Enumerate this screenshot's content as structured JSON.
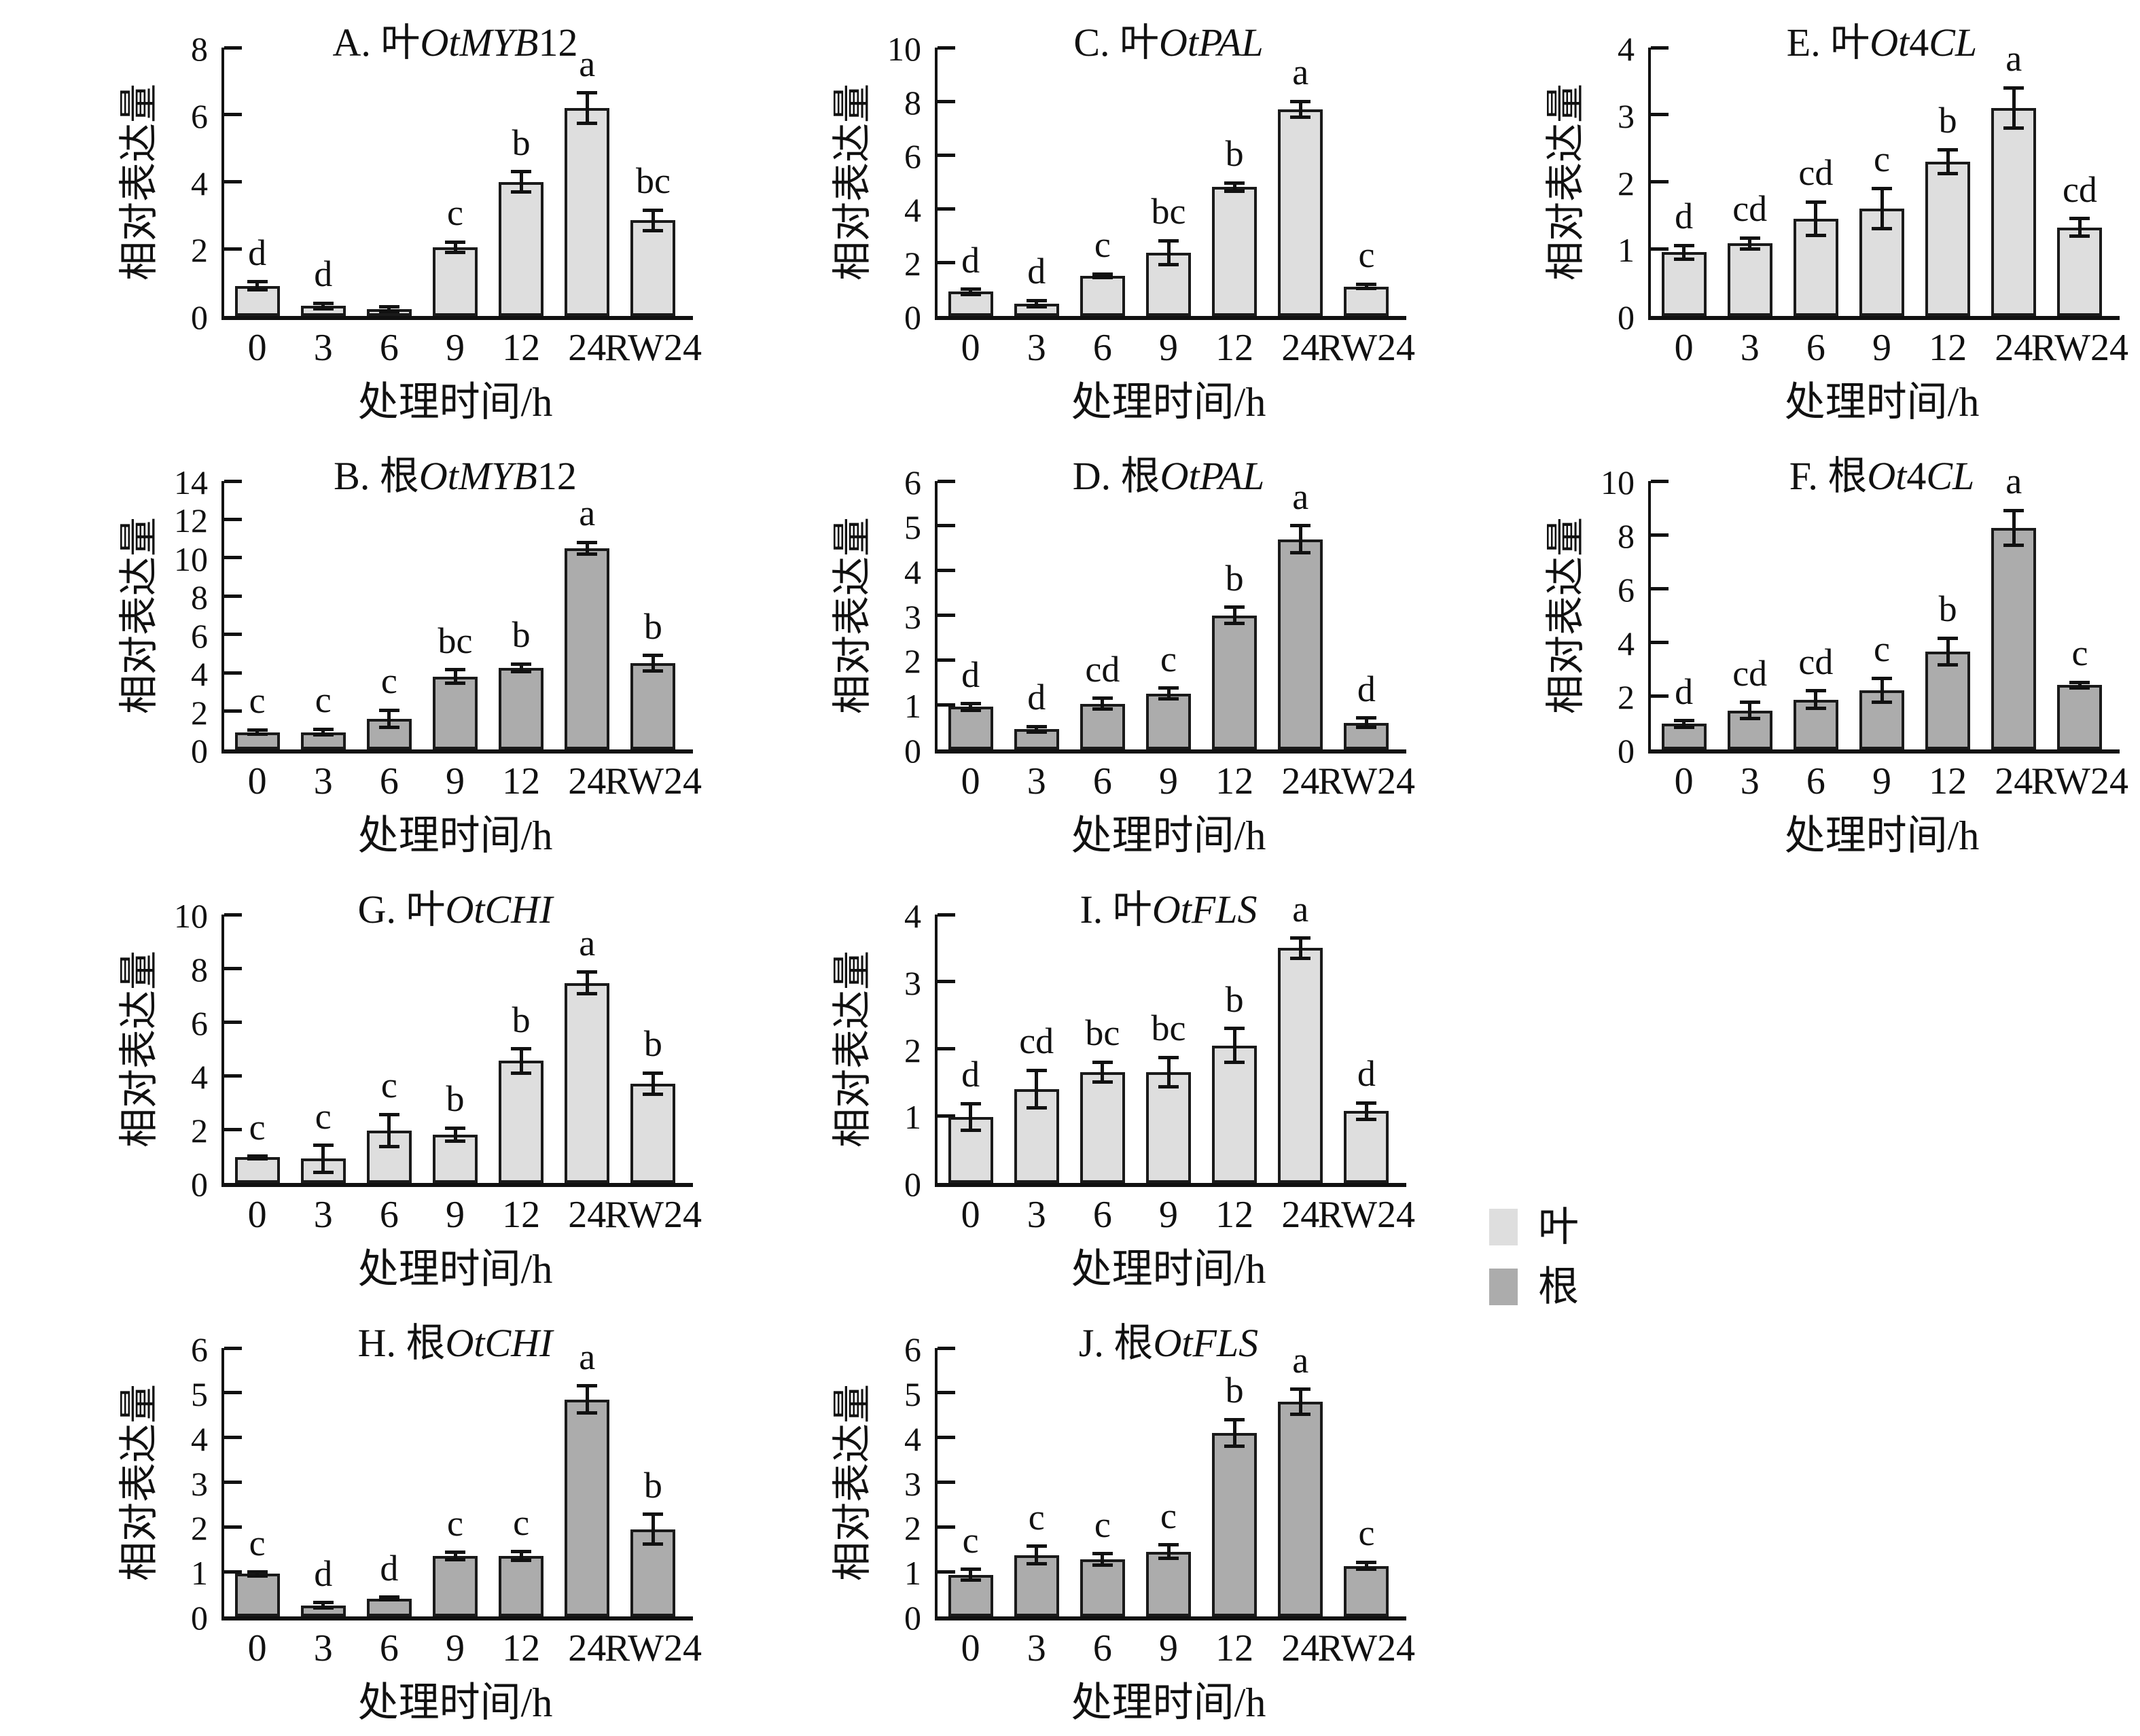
{
  "chart_data": {
    "type": "bar",
    "figure_kind": "qPCR relative expression bar panels",
    "categories": [
      "0",
      "3",
      "6",
      "9",
      "12",
      "24",
      "RW24"
    ],
    "xlabel": "处理时间/h",
    "ylabel": "相对表达量",
    "grid": false,
    "colors": {
      "leaf_fill": "#dedede",
      "root_fill": "#acacac",
      "bar_border": "#1a1a1a",
      "axis": "#111111",
      "text": "#111111",
      "background": "#ffffff"
    },
    "legend": {
      "position": "right-middle",
      "items": [
        {
          "label": "叶",
          "series": "leaf",
          "color": "#dedede"
        },
        {
          "label": "根",
          "series": "root",
          "color": "#acacac"
        }
      ]
    },
    "panels": [
      {
        "panel": "A",
        "title": "A. 叶OtMYB12",
        "title_segments": [
          {
            "t": "A. 叶",
            "i": false
          },
          {
            "t": "OtMYB",
            "i": true
          },
          {
            "t": "12",
            "i": false
          }
        ],
        "series": "leaf",
        "grid_row": 0,
        "grid_col": 0,
        "ylim": [
          0,
          8
        ],
        "ytick_step": 2,
        "values": [
          0.9,
          0.3,
          0.2,
          2.05,
          4.0,
          6.2,
          2.85
        ],
        "errors": [
          0.12,
          0.08,
          0.07,
          0.15,
          0.3,
          0.45,
          0.3
        ],
        "sig_letters": [
          "d",
          "d",
          "",
          "c",
          "b",
          "a",
          "bc"
        ]
      },
      {
        "panel": "C",
        "title": "C. 叶OtPAL",
        "title_segments": [
          {
            "t": "C. 叶",
            "i": false
          },
          {
            "t": "OtPAL",
            "i": true
          }
        ],
        "series": "leaf",
        "grid_row": 0,
        "grid_col": 1,
        "ylim": [
          0,
          10
        ],
        "ytick_step": 2,
        "values": [
          0.9,
          0.45,
          1.5,
          2.35,
          4.8,
          7.7,
          1.1
        ],
        "errors": [
          0.1,
          0.12,
          0.06,
          0.45,
          0.15,
          0.3,
          0.08
        ],
        "sig_letters": [
          "d",
          "d",
          "c",
          "bc",
          "b",
          "a",
          "c"
        ]
      },
      {
        "panel": "E",
        "title": "E. 叶Ot4CL",
        "title_segments": [
          {
            "t": "E. 叶",
            "i": false
          },
          {
            "t": "Ot",
            "i": true
          },
          {
            "t": "4",
            "i": false
          },
          {
            "t": "CL",
            "i": true
          }
        ],
        "series": "leaf",
        "grid_row": 0,
        "grid_col": 2,
        "ylim": [
          0,
          4
        ],
        "ytick_step": 1,
        "values": [
          0.95,
          1.08,
          1.45,
          1.6,
          2.3,
          3.1,
          1.32
        ],
        "errors": [
          0.1,
          0.08,
          0.25,
          0.3,
          0.18,
          0.3,
          0.13
        ],
        "sig_letters": [
          "d",
          "cd",
          "cd",
          "c",
          "b",
          "a",
          "cd"
        ]
      },
      {
        "panel": "B",
        "title": "B. 根OtMYB12",
        "title_segments": [
          {
            "t": "B. 根",
            "i": false
          },
          {
            "t": "OtMYB",
            "i": true
          },
          {
            "t": "12",
            "i": false
          }
        ],
        "series": "root",
        "grid_row": 1,
        "grid_col": 0,
        "ylim": [
          0,
          14
        ],
        "ytick_step": 2,
        "values": [
          0.9,
          0.9,
          1.6,
          3.8,
          4.25,
          10.5,
          4.5
        ],
        "errors": [
          0.12,
          0.15,
          0.45,
          0.35,
          0.2,
          0.3,
          0.4
        ],
        "sig_letters": [
          "c",
          "c",
          "c",
          "bc",
          "b",
          "a",
          "b"
        ]
      },
      {
        "panel": "D",
        "title": "D. 根OtPAL",
        "title_segments": [
          {
            "t": "D. 根",
            "i": false
          },
          {
            "t": "OtPAL",
            "i": true
          }
        ],
        "series": "root",
        "grid_row": 1,
        "grid_col": 1,
        "ylim": [
          0,
          6
        ],
        "ytick_step": 1,
        "values": [
          0.95,
          0.45,
          1.02,
          1.25,
          3.0,
          4.7,
          0.6
        ],
        "errors": [
          0.07,
          0.06,
          0.12,
          0.12,
          0.18,
          0.3,
          0.1
        ],
        "sig_letters": [
          "d",
          "d",
          "cd",
          "c",
          "b",
          "a",
          "d"
        ]
      },
      {
        "panel": "F",
        "title": "F. 根Ot4CL",
        "title_segments": [
          {
            "t": "F. 根",
            "i": false
          },
          {
            "t": "Ot",
            "i": true
          },
          {
            "t": "4",
            "i": false
          },
          {
            "t": "CL",
            "i": true
          }
        ],
        "series": "root",
        "grid_row": 1,
        "grid_col": 2,
        "ylim": [
          0,
          10
        ],
        "ytick_step": 2,
        "values": [
          0.95,
          1.45,
          1.85,
          2.2,
          3.65,
          8.25,
          2.4
        ],
        "errors": [
          0.12,
          0.3,
          0.33,
          0.45,
          0.5,
          0.65,
          0.1
        ],
        "sig_letters": [
          "d",
          "cd",
          "cd",
          "c",
          "b",
          "a",
          "c"
        ]
      },
      {
        "panel": "G",
        "title": "G. 叶OtCHI",
        "title_segments": [
          {
            "t": "G. 叶",
            "i": false
          },
          {
            "t": "OtCHI",
            "i": true
          }
        ],
        "series": "leaf",
        "grid_row": 2,
        "grid_col": 0,
        "ylim": [
          0,
          10
        ],
        "ytick_step": 2,
        "values": [
          0.95,
          0.9,
          1.95,
          1.8,
          4.55,
          7.45,
          3.7
        ],
        "errors": [
          0.05,
          0.5,
          0.6,
          0.25,
          0.45,
          0.4,
          0.4
        ],
        "sig_letters": [
          "c",
          "c",
          "c",
          "b",
          "b",
          "a",
          "b"
        ]
      },
      {
        "panel": "I",
        "title": "I. 叶OtFLS",
        "title_segments": [
          {
            "t": "I. 叶",
            "i": false
          },
          {
            "t": "OtFLS",
            "i": true
          }
        ],
        "series": "leaf",
        "grid_row": 2,
        "grid_col": 1,
        "ylim": [
          0,
          4
        ],
        "ytick_step": 1,
        "values": [
          0.98,
          1.4,
          1.65,
          1.65,
          2.05,
          3.5,
          1.07
        ],
        "errors": [
          0.2,
          0.28,
          0.15,
          0.22,
          0.25,
          0.15,
          0.12
        ],
        "sig_letters": [
          "d",
          "cd",
          "bc",
          "bc",
          "b",
          "a",
          "d"
        ]
      },
      {
        "panel": "H",
        "title": "H. 根OtCHI",
        "title_segments": [
          {
            "t": "H. 根",
            "i": false
          },
          {
            "t": "OtCHI",
            "i": true
          }
        ],
        "series": "root",
        "grid_row": 3,
        "grid_col": 0,
        "ylim": [
          0,
          6
        ],
        "ytick_step": 1,
        "values": [
          0.95,
          0.25,
          0.4,
          1.35,
          1.35,
          4.85,
          1.95
        ],
        "errors": [
          0.04,
          0.06,
          0.03,
          0.08,
          0.1,
          0.3,
          0.33
        ],
        "sig_letters": [
          "c",
          "d",
          "d",
          "c",
          "c",
          "a",
          "b"
        ]
      },
      {
        "panel": "J",
        "title": "J. 根OtFLS",
        "title_segments": [
          {
            "t": "J. 根",
            "i": false
          },
          {
            "t": "OtFLS",
            "i": true
          }
        ],
        "series": "root",
        "grid_row": 3,
        "grid_col": 1,
        "ylim": [
          0,
          6
        ],
        "ytick_step": 1,
        "values": [
          0.93,
          1.37,
          1.27,
          1.45,
          4.1,
          4.8,
          1.13
        ],
        "errors": [
          0.12,
          0.2,
          0.13,
          0.15,
          0.3,
          0.28,
          0.08
        ],
        "sig_letters": [
          "c",
          "c",
          "c",
          "c",
          "b",
          "a",
          "c"
        ]
      }
    ]
  }
}
